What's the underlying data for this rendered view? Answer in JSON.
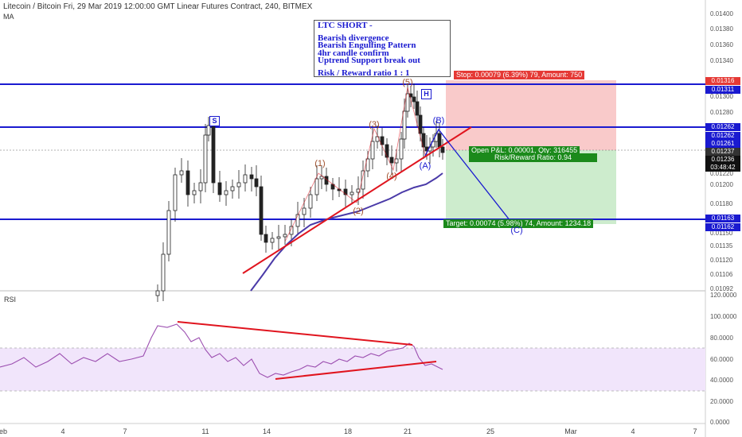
{
  "header": {
    "title": "Litecoin / Bitcoin Fri, 29 Mar 2019 12:00:00 GMT Linear Futures Contract, 240, BITMEX",
    "indicator": "MA"
  },
  "rsi_label": "RSI",
  "note": {
    "title": "LTC SHORT -",
    "lines": [
      "Bearish divergence",
      "Bearish Engulfing Pattern",
      "4hr candle confirm",
      "Uptrend Support break out"
    ],
    "rr": "Risk / Reward ratio 1 : 1"
  },
  "position": {
    "stop_label": "Stop: 0.00079 (6.39%) 79, Amount: 750",
    "open_label": "Open P&L: 0.00001, Qty: 316455",
    "rr_label": "Risk/Reward Ratio: 0.94",
    "target_label": "Target: 0.00074 (5.98%) 74, Amount: 1234.18"
  },
  "waves": {
    "w1": "(1)",
    "w2": "(2)",
    "w3": "(3)",
    "w4": "(4)",
    "w5": "(5)",
    "wA": "(A)",
    "wB": "(B)",
    "wC": "(C)",
    "S": "S",
    "H": "H"
  },
  "price_axis": {
    "ticks": [
      "0.01400",
      "0.01380",
      "0.01360",
      "0.01340",
      "0.01300",
      "0.01280",
      "0.01220",
      "0.01200",
      "0.01180",
      "0.01150",
      "0.01135",
      "0.01120",
      "0.01106",
      "0.01092"
    ],
    "tags": [
      {
        "text": "0.01316",
        "color": "#e53935"
      },
      {
        "text": "0.01311",
        "color": "#1a1ad0"
      },
      {
        "text": "0.01262",
        "color": "#1a1ad0"
      },
      {
        "text": "0.01262",
        "color": "#1a1ad0"
      },
      {
        "text": "0.01261",
        "color": "#1a1ad0"
      },
      {
        "text": "0.01237",
        "color": "#333333"
      },
      {
        "text": "0.01236",
        "color": "#111111"
      },
      {
        "text": "03:48:42",
        "color": "#111111"
      },
      {
        "text": "0.01163",
        "color": "#1a1ad0"
      },
      {
        "text": "0.01162",
        "color": "#1a1ad0"
      }
    ]
  },
  "rsi_axis": {
    "ticks": [
      "120.0000",
      "100.0000",
      "80.0000",
      "60.0000",
      "40.0000",
      "20.0000",
      "0.0000"
    ]
  },
  "time_axis": {
    "ticks": [
      "eb",
      "4",
      "7",
      "11",
      "14",
      "18",
      "21",
      "25",
      "Mar",
      "4",
      "7"
    ]
  },
  "colors": {
    "candle": "#222222",
    "sr_line": "#1a1ad0",
    "trend": "#e0141e",
    "ma": "#4a3aa8",
    "stop_zone": "#f9caca",
    "target_zone": "#cdeccd",
    "rsi_band": "#f1e5fb",
    "rsi_line": "#9c4fb0",
    "wave_label": "#a0502c"
  }
}
